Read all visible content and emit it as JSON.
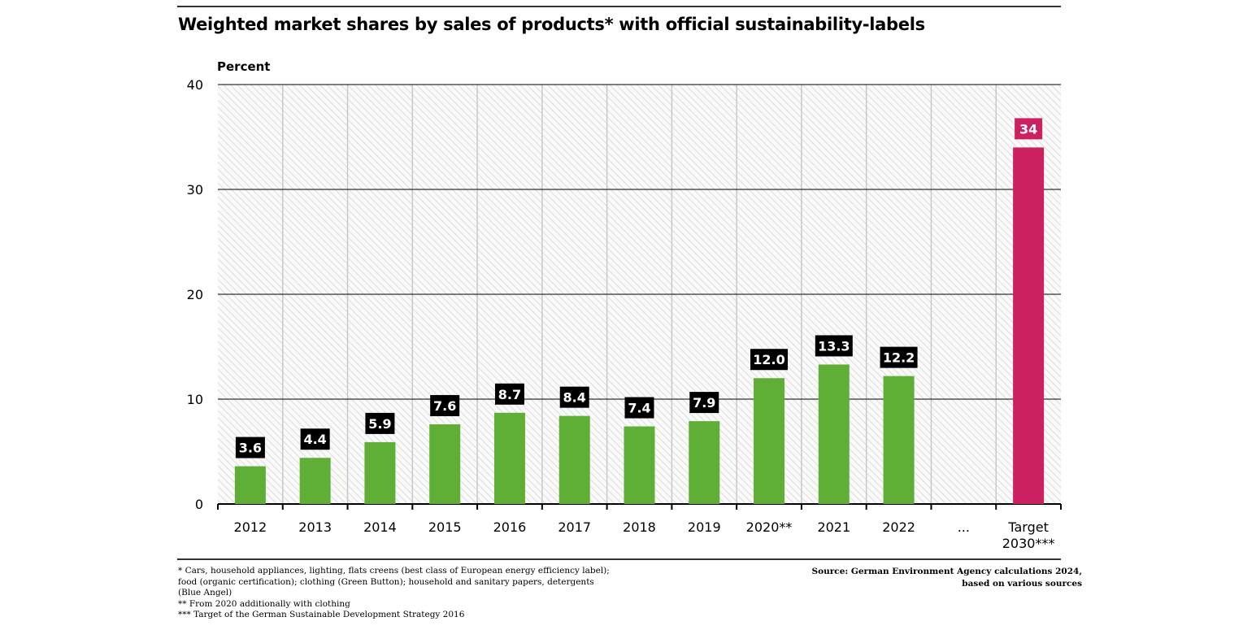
{
  "title": "Weighted market shares by sales of products* with official sustainability-labels",
  "chart_data": {
    "type": "bar",
    "title": "Weighted market shares by sales of products* with official sustainability-labels",
    "ylabel": "Percent",
    "xlabel": "",
    "ylim": [
      0,
      40
    ],
    "yticks": [
      0,
      10,
      20,
      30,
      40
    ],
    "grid": true,
    "categories": [
      "2012",
      "2013",
      "2014",
      "2015",
      "2016",
      "2017",
      "2018",
      "2019",
      "2020**",
      "2021",
      "2022",
      "...",
      "Target 2030***"
    ],
    "values": [
      3.6,
      4.4,
      5.9,
      7.6,
      8.7,
      8.4,
      7.4,
      7.9,
      12.0,
      13.3,
      12.2,
      null,
      34
    ],
    "data_labels": [
      "3.6",
      "4.4",
      "5.9",
      "7.6",
      "8.7",
      "8.4",
      "7.4",
      "7.9",
      "12.0",
      "13.3",
      "12.2",
      "",
      "34"
    ],
    "colors": {
      "actual": "#5fae36",
      "target": "#cc2160",
      "label_bg": "#000000",
      "grid": "#000000",
      "background_hatch": "#dcdcdc"
    }
  },
  "footnotes": [
    "* Cars, household appliances, lighting, flats creens (best class of European energy efficiency label);",
    "food (organic certification); clothing (Green Button); household and sanitary papers, detergents",
    "(Blue Angel)",
    "** From 2020 additionally with clothing",
    "*** Target of the German Sustainable Development Strategy 2016"
  ],
  "source": [
    "Source: German Environment Agency calculations 2024,",
    "based on various sources"
  ]
}
